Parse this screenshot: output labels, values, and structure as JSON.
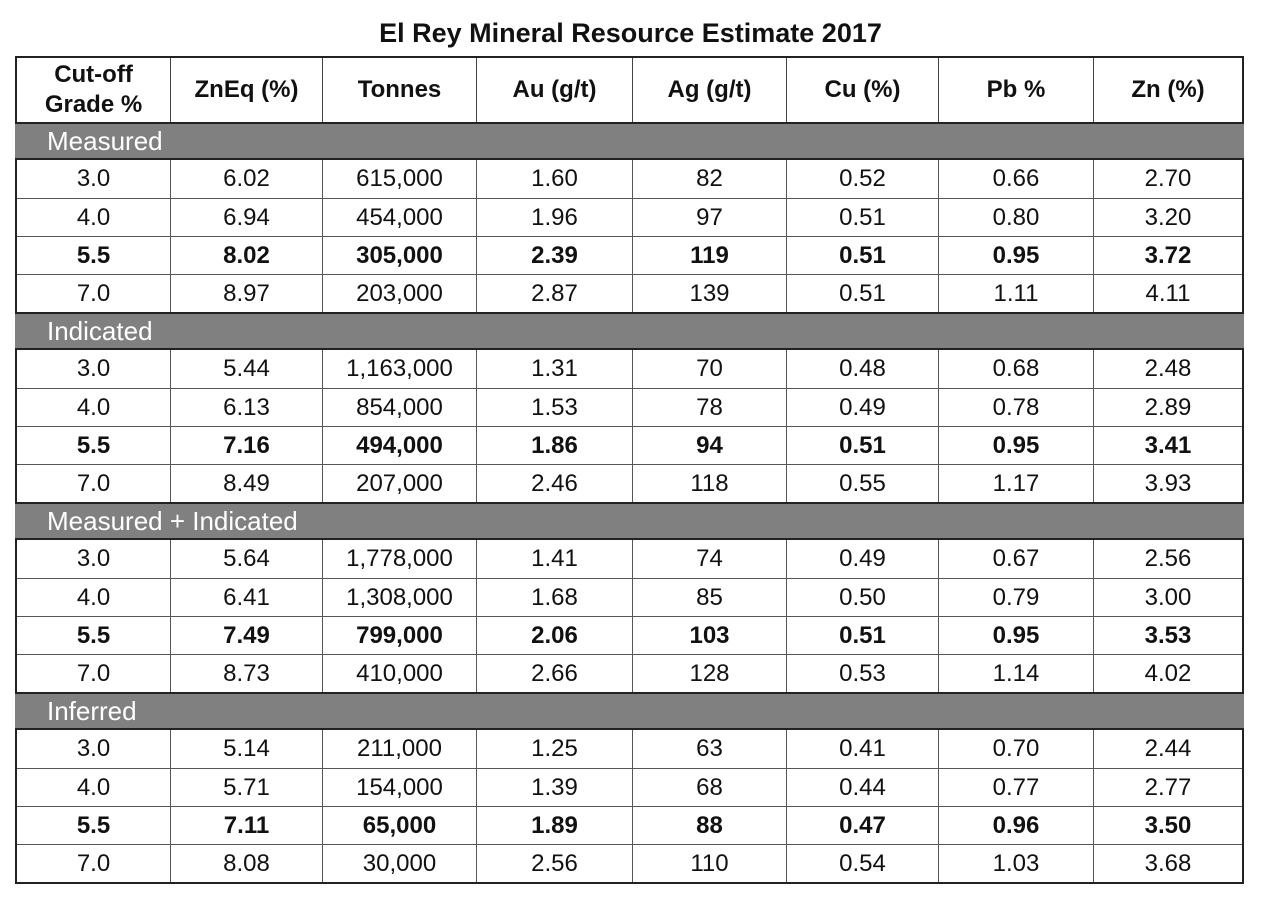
{
  "title": "El Rey Mineral Resource Estimate 2017",
  "headers": [
    "Cut-off Grade %",
    "ZnEq (%)",
    "Tonnes",
    "Au (g/t)",
    "Ag (g/t)",
    "Cu (%)",
    "Pb %",
    "Zn (%)"
  ],
  "sections": [
    {
      "label": "Measured",
      "rows": [
        {
          "bold": false,
          "cells": [
            "3.0",
            "6.02",
            "615,000",
            "1.60",
            "82",
            "0.52",
            "0.66",
            "2.70"
          ]
        },
        {
          "bold": false,
          "cells": [
            "4.0",
            "6.94",
            "454,000",
            "1.96",
            "97",
            "0.51",
            "0.80",
            "3.20"
          ]
        },
        {
          "bold": true,
          "cells": [
            "5.5",
            "8.02",
            "305,000",
            "2.39",
            "119",
            "0.51",
            "0.95",
            "3.72"
          ]
        },
        {
          "bold": false,
          "cells": [
            "7.0",
            "8.97",
            "203,000",
            "2.87",
            "139",
            "0.51",
            "1.11",
            "4.11"
          ]
        }
      ]
    },
    {
      "label": "Indicated",
      "rows": [
        {
          "bold": false,
          "cells": [
            "3.0",
            "5.44",
            "1,163,000",
            "1.31",
            "70",
            "0.48",
            "0.68",
            "2.48"
          ]
        },
        {
          "bold": false,
          "cells": [
            "4.0",
            "6.13",
            "854,000",
            "1.53",
            "78",
            "0.49",
            "0.78",
            "2.89"
          ]
        },
        {
          "bold": true,
          "cells": [
            "5.5",
            "7.16",
            "494,000",
            "1.86",
            "94",
            "0.51",
            "0.95",
            "3.41"
          ]
        },
        {
          "bold": false,
          "cells": [
            "7.0",
            "8.49",
            "207,000",
            "2.46",
            "118",
            "0.55",
            "1.17",
            "3.93"
          ]
        }
      ]
    },
    {
      "label": "Measured + Indicated",
      "rows": [
        {
          "bold": false,
          "cells": [
            "3.0",
            "5.64",
            "1,778,000",
            "1.41",
            "74",
            "0.49",
            "0.67",
            "2.56"
          ]
        },
        {
          "bold": false,
          "cells": [
            "4.0",
            "6.41",
            "1,308,000",
            "1.68",
            "85",
            "0.50",
            "0.79",
            "3.00"
          ]
        },
        {
          "bold": true,
          "cells": [
            "5.5",
            "7.49",
            "799,000",
            "2.06",
            "103",
            "0.51",
            "0.95",
            "3.53"
          ]
        },
        {
          "bold": false,
          "cells": [
            "7.0",
            "8.73",
            "410,000",
            "2.66",
            "128",
            "0.53",
            "1.14",
            "4.02"
          ]
        }
      ]
    },
    {
      "label": "Inferred",
      "rows": [
        {
          "bold": false,
          "cells": [
            "3.0",
            "5.14",
            "211,000",
            "1.25",
            "63",
            "0.41",
            "0.70",
            "2.44"
          ]
        },
        {
          "bold": false,
          "cells": [
            "4.0",
            "5.71",
            "154,000",
            "1.39",
            "68",
            "0.44",
            "0.77",
            "2.77"
          ]
        },
        {
          "bold": true,
          "cells": [
            "5.5",
            "7.11",
            "65,000",
            "1.89",
            "88",
            "0.47",
            "0.96",
            "3.50"
          ]
        },
        {
          "bold": false,
          "cells": [
            "7.0",
            "8.08",
            "30,000",
            "2.56",
            "110",
            "0.54",
            "1.03",
            "3.68"
          ]
        }
      ]
    }
  ],
  "colors": {
    "section_band": "#808080",
    "section_text": "#ffffff",
    "border": "#222222"
  }
}
